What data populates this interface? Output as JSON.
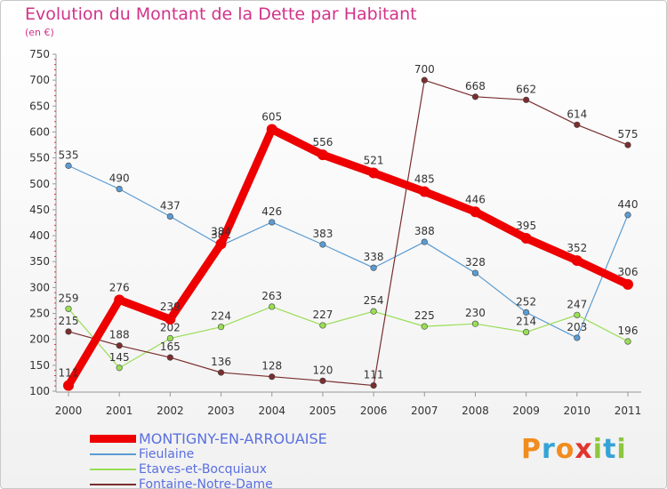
{
  "title": "Evolution du Montant de la Dette par Habitant",
  "subtitle": "(en €)",
  "logo": {
    "text": "Proxiti",
    "colors": [
      "#f28c1e",
      "#35a3d6",
      "#f28c1e",
      "#e2342f",
      "#8dc63f",
      "#35a3d6",
      "#8dc63f"
    ]
  },
  "chart_data": {
    "type": "line",
    "x": [
      "2000",
      "2001",
      "2002",
      "2003",
      "2004",
      "2005",
      "2006",
      "2007",
      "2008",
      "2009",
      "2010",
      "2011"
    ],
    "ylim": [
      100,
      750
    ],
    "yticks": [
      100,
      150,
      200,
      250,
      300,
      350,
      400,
      450,
      500,
      550,
      600,
      650,
      700,
      750
    ],
    "grid": false,
    "legend_position": "bottom-left",
    "series": [
      {
        "name": "MONTIGNY-EN-ARROUAISE",
        "color": "#ee0000",
        "width": 9,
        "values": [
          111,
          276,
          239,
          384,
          605,
          556,
          521,
          485,
          446,
          395,
          352,
          306
        ]
      },
      {
        "name": "Fieulaine",
        "color": "#5b9bd2",
        "width": 1.2,
        "values": [
          535,
          490,
          437,
          381,
          426,
          383,
          338,
          388,
          328,
          252,
          203,
          440
        ]
      },
      {
        "name": "Etaves-et-Bocquiaux",
        "color": "#99dd55",
        "width": 1.2,
        "values": [
          259,
          145,
          202,
          224,
          263,
          227,
          254,
          225,
          230,
          214,
          247,
          196
        ]
      },
      {
        "name": "Fontaine-Notre-Dame",
        "color": "#7a2e2e",
        "width": 1.2,
        "values": [
          215,
          188,
          165,
          136,
          128,
          120,
          111,
          700,
          668,
          662,
          614,
          575
        ]
      }
    ]
  }
}
